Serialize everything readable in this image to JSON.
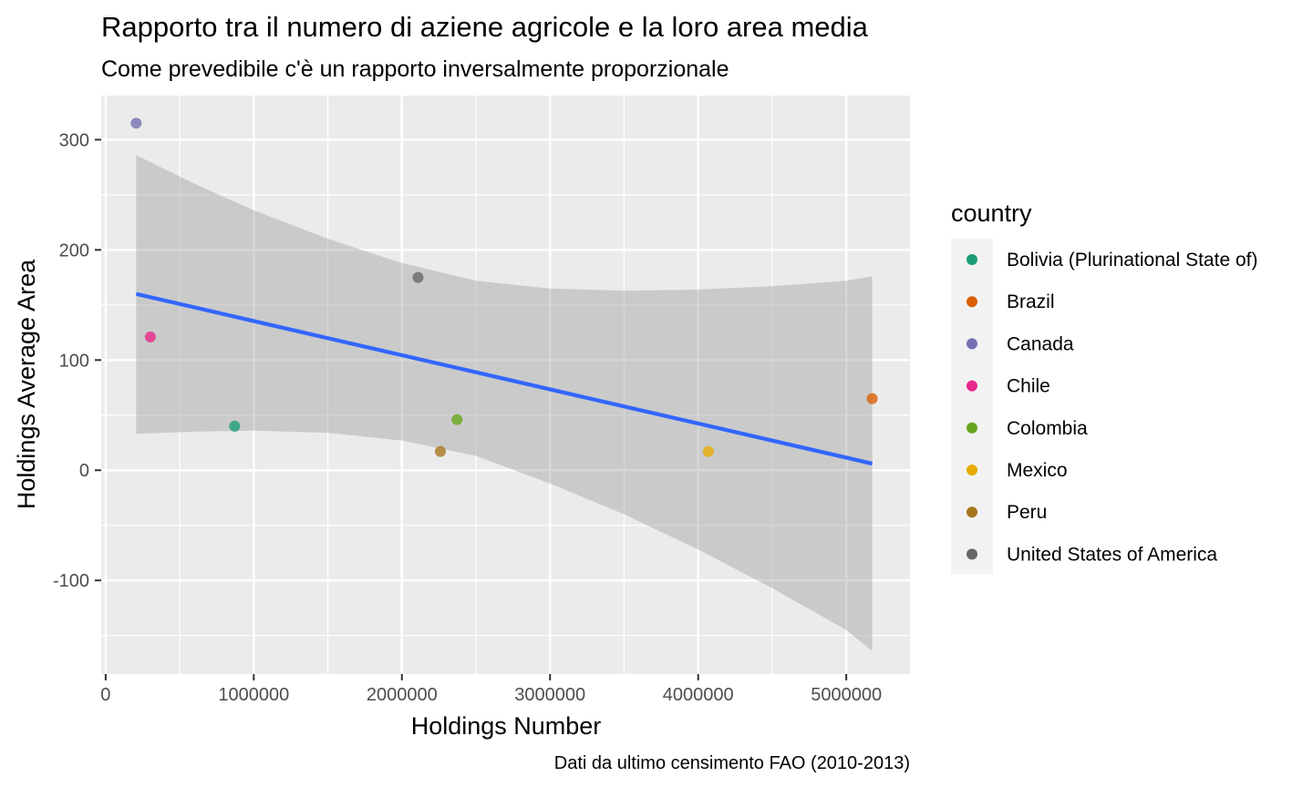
{
  "chart_data": {
    "type": "scatter",
    "title": "Rapporto tra il numero di aziene agricole e la loro area media",
    "subtitle": "Come prevedibile c'è un rapporto inversalmente proporzionale",
    "caption": "Dati da ultimo censimento FAO (2010-2013)",
    "xlabel": "Holdings Number",
    "ylabel": "Holdings Average Area",
    "xlim": [
      -30000,
      5430000
    ],
    "ylim": [
      -185,
      340
    ],
    "x_ticks": [
      0,
      1000000,
      2000000,
      3000000,
      4000000,
      5000000
    ],
    "x_tick_labels": [
      "0",
      "1000000",
      "2000000",
      "3000000",
      "4000000",
      "5000000"
    ],
    "y_ticks": [
      -100,
      0,
      100,
      200,
      300
    ],
    "y_tick_labels": [
      "-100",
      "0",
      "100",
      "200",
      "300"
    ],
    "grid": true,
    "legend": {
      "title": "country",
      "position": "right"
    },
    "series": [
      {
        "name": "Bolivia (Plurinational State of)",
        "color": "#1b9e77",
        "x": [
          871000
        ],
        "y": [
          40
        ]
      },
      {
        "name": "Brazil",
        "color": "#d95f02",
        "x": [
          5175000
        ],
        "y": [
          65
        ]
      },
      {
        "name": "Canada",
        "color": "#7570b3",
        "x": [
          206000
        ],
        "y": [
          315
        ]
      },
      {
        "name": "Chile",
        "color": "#e7298a",
        "x": [
          302000
        ],
        "y": [
          121
        ]
      },
      {
        "name": "Colombia",
        "color": "#66a61e",
        "x": [
          2372000
        ],
        "y": [
          46
        ]
      },
      {
        "name": "Mexico",
        "color": "#e6ab02",
        "x": [
          4069000
        ],
        "y": [
          17
        ]
      },
      {
        "name": "Peru",
        "color": "#a6761d",
        "x": [
          2260000
        ],
        "y": [
          17
        ]
      },
      {
        "name": "United States of America",
        "color": "#666666",
        "x": [
          2109000
        ],
        "y": [
          175
        ]
      }
    ],
    "smooth": {
      "method": "lm",
      "color": "#3366ff",
      "x": [
        206000,
        5175000
      ],
      "y": [
        160,
        6
      ],
      "ci_x": [
        206000,
        600000,
        1000000,
        1500000,
        2000000,
        2500000,
        3000000,
        3500000,
        4000000,
        4500000,
        5000000,
        5175000
      ],
      "ci_upper": [
        286,
        260,
        236,
        210,
        188,
        172,
        165,
        163,
        164,
        167,
        172,
        176
      ],
      "ci_lower": [
        33,
        35,
        36,
        34,
        27,
        13,
        -12,
        -40,
        -72,
        -107,
        -145,
        -164
      ]
    }
  }
}
